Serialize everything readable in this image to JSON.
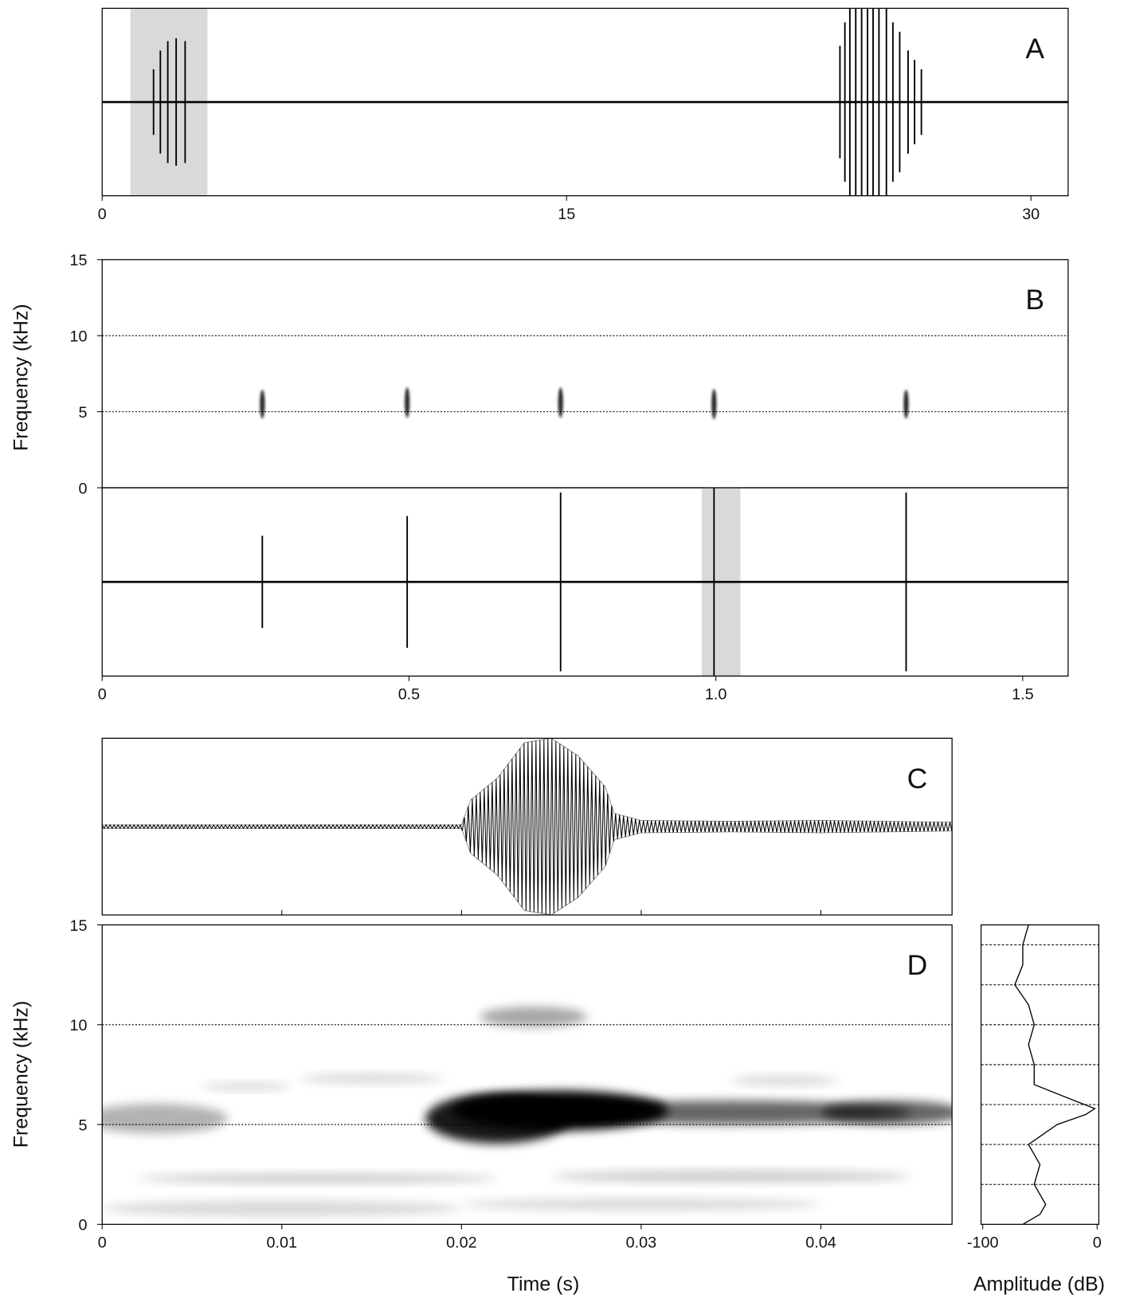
{
  "chart_data": [
    {
      "type": "waveform",
      "label": "A",
      "xlim": [
        0,
        31.2
      ],
      "xticks": [
        0,
        15,
        30
      ],
      "ylim": [
        -1,
        1
      ],
      "highlight": [
        0.91,
        3.4
      ],
      "highlight_color": "#d9d9d9",
      "color": "#000000",
      "x": [
        1.66,
        1.88,
        2.12,
        2.39,
        2.68,
        23.83,
        23.99,
        24.15,
        24.34,
        24.53,
        24.72,
        24.9,
        25.09,
        25.33,
        25.54,
        25.76,
        26.03,
        26.24,
        26.46
      ],
      "values": [
        0.35,
        0.55,
        0.65,
        0.68,
        0.65,
        0.6,
        0.85,
        1,
        1,
        1,
        1,
        1,
        1,
        1,
        0.85,
        0.75,
        0.55,
        0.45,
        0.35
      ]
    },
    {
      "type": "spectrogram",
      "label": "B",
      "ylabel": "Frequency (kHz)",
      "xlim": [
        0,
        1.574
      ],
      "ylim": [
        0,
        15
      ],
      "yticks": [
        0,
        5,
        10,
        15
      ],
      "grid": true,
      "color": "#000000",
      "x": [
        0.261,
        0.497,
        0.747,
        0.997,
        1.31
      ],
      "values": [
        5.5,
        5.6,
        5.6,
        5.5,
        5.5
      ],
      "intensity": [
        0.85,
        0.85,
        0.85,
        0.85,
        0.85
      ],
      "duration": [
        0.008,
        0.008,
        0.008,
        0.008,
        0.008
      ],
      "bandwidth": [
        1.9,
        2.0,
        2.0,
        2.0,
        1.9
      ]
    },
    {
      "type": "waveform",
      "xlim": [
        0,
        1.574
      ],
      "xticks": [
        0,
        0.5,
        {
          "value": 1,
          "label": "1.0"
        },
        1.5
      ],
      "ylim": [
        -1,
        1
      ],
      "highlight": [
        0.977,
        1.04
      ],
      "highlight_color": "#d9d9d9",
      "color": "#000000",
      "x": [
        0.261,
        0.497,
        0.747,
        0.997,
        1.31
      ],
      "values": [
        0.49,
        0.7,
        0.95,
        1,
        0.95
      ]
    },
    {
      "type": "envelope",
      "label": "C",
      "xlim": [
        0,
        0.0473
      ],
      "tick_marks": [
        0.01,
        0.02,
        0.03,
        0.04
      ],
      "ylim": [
        -1,
        1
      ],
      "color": "#000000",
      "x": [
        0,
        0.02,
        0.0205,
        0.022,
        0.0235,
        0.025,
        0.0265,
        0.028,
        0.0285,
        0.03,
        0.035,
        0.04,
        0.0473
      ],
      "values": [
        0.02,
        0.02,
        0.3,
        0.55,
        0.95,
        1,
        0.8,
        0.45,
        0.15,
        0.07,
        0.06,
        0.07,
        0.05
      ]
    },
    {
      "type": "spectrogram",
      "label": "D",
      "xlabel": "Time (s)",
      "ylabel": "Frequency (kHz)",
      "xlim": [
        0,
        0.0473
      ],
      "xticks": [
        0,
        0.01,
        0.02,
        0.03,
        0.04
      ],
      "ylim": [
        0,
        15
      ],
      "yticks": [
        0,
        5,
        10,
        15
      ],
      "grid": true,
      "color": "#000000",
      "x": [
        0.0255,
        0.022,
        0.035,
        0.044,
        0.024,
        0.003,
        0.012,
        0.035,
        0.01,
        0.03,
        0.015,
        0.038,
        0.008
      ],
      "values": [
        5.7,
        5.3,
        5.6,
        5.6,
        10.4,
        5.3,
        2.3,
        2.4,
        0.8,
        1.0,
        7.3,
        7.2,
        6.9
      ],
      "intensity": [
        1,
        0.9,
        0.6,
        0.6,
        0.35,
        0.3,
        0.2,
        0.2,
        0.15,
        0.15,
        0.15,
        0.15,
        0.15
      ],
      "duration": [
        0.012,
        0.008,
        0.02,
        0.008,
        0.006,
        0.008,
        0.02,
        0.02,
        0.02,
        0.02,
        0.008,
        0.006,
        0.005
      ],
      "bandwidth": [
        2.0,
        2.5,
        1.2,
        1.2,
        1.0,
        1.5,
        0.5,
        0.6,
        0.8,
        0.6,
        0.5,
        0.5,
        0.4
      ]
    },
    {
      "type": "line",
      "xlabel": "Amplitude (dB)",
      "xlim": [
        -101.5,
        1.5
      ],
      "xticks": [
        -100,
        0
      ],
      "ylim": [
        0,
        15
      ],
      "gridlines": [
        2,
        4,
        6,
        8,
        10,
        12,
        14
      ],
      "color": "#000000",
      "x": [
        -65,
        -50,
        -45,
        -55,
        -50,
        -60,
        -35,
        -10,
        -2,
        -20,
        -55,
        -55,
        -60,
        -55,
        -60,
        -72,
        -65,
        -65,
        -60
      ],
      "y": [
        0,
        0.5,
        1,
        2,
        3,
        4,
        5,
        5.5,
        5.8,
        6.2,
        7,
        8,
        9,
        10,
        11,
        12,
        13,
        14,
        15
      ]
    }
  ]
}
